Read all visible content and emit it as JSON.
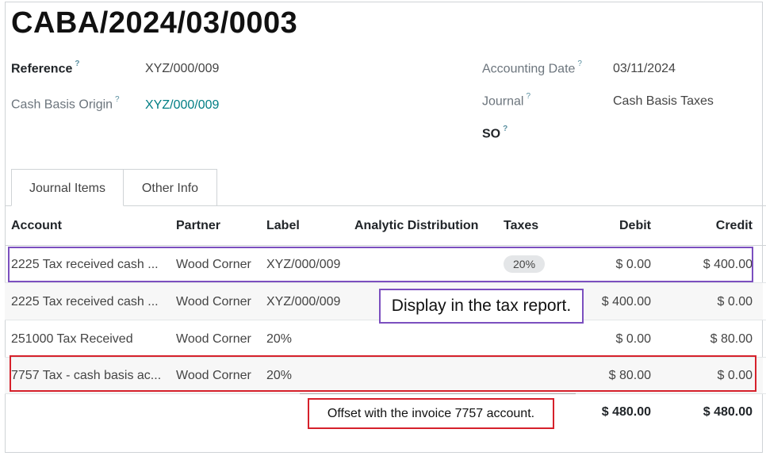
{
  "entry": {
    "title": "CABA/2024/03/0003"
  },
  "fields": {
    "reference": {
      "label": "Reference",
      "help": "?",
      "value": "XYZ/000/009"
    },
    "cash_basis_origin": {
      "label": "Cash Basis Origin",
      "help": "?",
      "value": "XYZ/000/009"
    },
    "accounting_date": {
      "label": "Accounting Date",
      "help": "?",
      "value": "03/11/2024"
    },
    "journal": {
      "label": "Journal",
      "help": "?",
      "value": "Cash Basis Taxes"
    },
    "so": {
      "label": "SO",
      "help": "?"
    }
  },
  "tabs": [
    {
      "label": "Journal Items",
      "active": true
    },
    {
      "label": "Other Info",
      "active": false
    }
  ],
  "table": {
    "columns": [
      "Account",
      "Partner",
      "Label",
      "Analytic Distribution",
      "Taxes",
      "Debit",
      "Credit"
    ],
    "rows": [
      {
        "account": "2225 Tax received cash ...",
        "partner": "Wood Corner",
        "label": "XYZ/000/009",
        "taxes": "20%",
        "debit": "$ 0.00",
        "credit": "$ 400.00"
      },
      {
        "account": "2225 Tax received cash ...",
        "partner": "Wood Corner",
        "label": "XYZ/000/009",
        "taxes": "",
        "debit": "$ 400.00",
        "credit": "$ 0.00"
      },
      {
        "account": "251000 Tax Received",
        "partner": "Wood Corner",
        "label": "20%",
        "taxes": "",
        "debit": "$ 0.00",
        "credit": "$ 80.00"
      },
      {
        "account": "7757 Tax - cash basis ac...",
        "partner": "Wood Corner",
        "label": "20%",
        "taxes": "",
        "debit": "$ 80.00",
        "credit": "$ 0.00"
      }
    ],
    "totals": {
      "debit": "$ 480.00",
      "credit": "$ 480.00"
    }
  },
  "annotations": {
    "tax_report_note": "Display in the tax report.",
    "offset_note": "Offset with the invoice 7757 account."
  },
  "colors": {
    "highlight_purple": "#7b4fbf",
    "highlight_red": "#d6212b",
    "link": "#017e84"
  }
}
